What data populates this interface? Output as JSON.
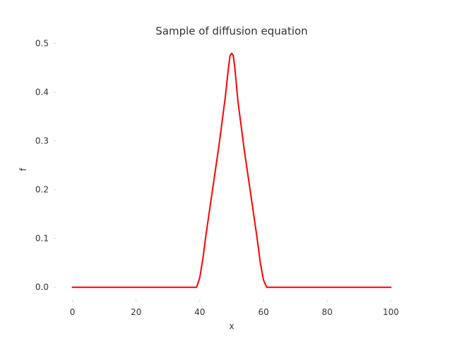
{
  "chart_data": {
    "type": "line",
    "title": "Sample of diffusion equation",
    "xlabel": "x",
    "ylabel": "f",
    "xlim": [
      -5,
      105
    ],
    "ylim": [
      -0.025,
      0.505
    ],
    "xticks": [
      0,
      20,
      40,
      60,
      80,
      100
    ],
    "xtick_labels": [
      "0",
      "20",
      "40",
      "60",
      "80",
      "100"
    ],
    "yticks": [
      0.0,
      0.1,
      0.2,
      0.3,
      0.4,
      0.5
    ],
    "ytick_labels": [
      "0.0",
      "0.1",
      "0.2",
      "0.3",
      "0.4",
      "0.5"
    ],
    "grid": false,
    "series": [
      {
        "color": "#ff0000",
        "x": [
          0,
          10,
          20,
          30,
          39,
          40,
          41,
          42,
          44,
          46,
          48,
          49,
          49.5,
          50,
          50.5,
          51,
          52,
          54,
          56,
          58,
          59,
          60,
          61,
          70,
          80,
          90,
          100
        ],
        "y": [
          0.0,
          0.0,
          0.0,
          0.0,
          0.0,
          0.02,
          0.06,
          0.11,
          0.2,
          0.29,
          0.39,
          0.45,
          0.475,
          0.48,
          0.475,
          0.45,
          0.38,
          0.28,
          0.19,
          0.1,
          0.05,
          0.015,
          0.0,
          0.0,
          0.0,
          0.0,
          0.0
        ]
      }
    ]
  }
}
